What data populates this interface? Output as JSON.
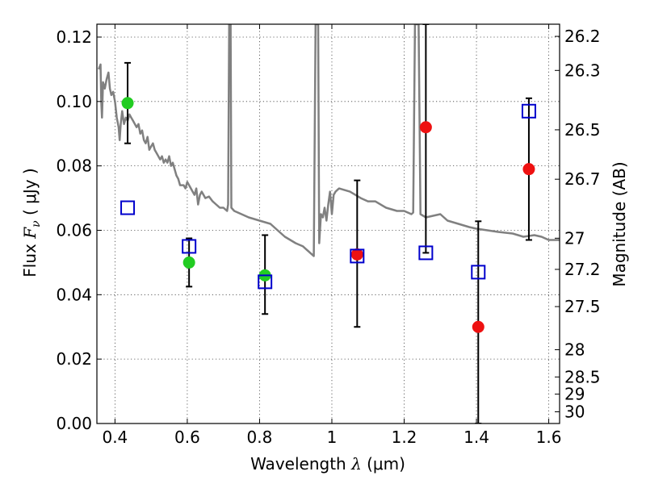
{
  "chart_data": {
    "type": "scatter",
    "xlabel": "Wavelength  λ (μm)",
    "ylabel": "Flux  Fν (  μJy )",
    "ylabel_parts": {
      "prefix": "Flux  ",
      "symbol": "F",
      "subscript": "ν",
      "suffix": " (  μJy )"
    },
    "xlabel_parts": {
      "prefix": "Wavelength  ",
      "symbol": "λ",
      "suffix": " (μm)"
    },
    "y2label": "Magnitude (AB)",
    "xlim": [
      0.35,
      1.63
    ],
    "ylim": [
      0.0,
      0.124
    ],
    "x_ticks": [
      {
        "value": 0.4,
        "label": "0.4"
      },
      {
        "value": 0.6,
        "label": "0.6"
      },
      {
        "value": 0.8,
        "label": "0.8"
      },
      {
        "value": 1.0,
        "label": "1"
      },
      {
        "value": 1.2,
        "label": "1.2"
      },
      {
        "value": 1.4,
        "label": "1.4"
      },
      {
        "value": 1.6,
        "label": "1.6"
      }
    ],
    "y_ticks": [
      {
        "value": 0.0,
        "label": "0.00"
      },
      {
        "value": 0.02,
        "label": "0.02"
      },
      {
        "value": 0.04,
        "label": "0.04"
      },
      {
        "value": 0.06,
        "label": "0.06"
      },
      {
        "value": 0.08,
        "label": "0.08"
      },
      {
        "value": 0.1,
        "label": "0.10"
      },
      {
        "value": 0.12,
        "label": "0.12"
      }
    ],
    "mag_ticks": [
      {
        "value": 26.2,
        "label": "26.2"
      },
      {
        "value": 26.3,
        "label": "26.3"
      },
      {
        "value": 26.5,
        "label": "26.5"
      },
      {
        "value": 26.7,
        "label": "26.7"
      },
      {
        "value": 27.0,
        "label": "27"
      },
      {
        "value": 27.2,
        "label": "27.2"
      },
      {
        "value": 27.5,
        "label": "27.5"
      },
      {
        "value": 28.0,
        "label": "28"
      },
      {
        "value": 28.5,
        "label": "28.5"
      },
      {
        "value": 29.0,
        "label": "29"
      },
      {
        "value": 30.0,
        "label": "30"
      }
    ],
    "grid": true,
    "colors": {
      "sed": "#808080",
      "detection": "#22cc22",
      "nondetection": "#ee1111",
      "model": "#0000cc",
      "errorbar": "#000000"
    },
    "series": [
      {
        "name": "SED template",
        "kind": "line",
        "points": [
          [
            0.355,
            0.11
          ],
          [
            0.36,
            0.1115
          ],
          [
            0.362,
            0.1
          ],
          [
            0.364,
            0.095
          ],
          [
            0.367,
            0.106
          ],
          [
            0.372,
            0.104
          ],
          [
            0.377,
            0.107
          ],
          [
            0.382,
            0.109
          ],
          [
            0.386,
            0.104
          ],
          [
            0.39,
            0.102
          ],
          [
            0.395,
            0.103
          ],
          [
            0.4,
            0.1
          ],
          [
            0.405,
            0.095
          ],
          [
            0.41,
            0.092
          ],
          [
            0.413,
            0.088
          ],
          [
            0.416,
            0.093
          ],
          [
            0.42,
            0.097
          ],
          [
            0.425,
            0.093
          ],
          [
            0.43,
            0.095
          ],
          [
            0.435,
            0.094
          ],
          [
            0.44,
            0.096
          ],
          [
            0.445,
            0.095
          ],
          [
            0.45,
            0.094
          ],
          [
            0.455,
            0.093
          ],
          [
            0.46,
            0.092
          ],
          [
            0.465,
            0.093
          ],
          [
            0.47,
            0.09
          ],
          [
            0.475,
            0.091
          ],
          [
            0.48,
            0.088
          ],
          [
            0.485,
            0.087
          ],
          [
            0.49,
            0.089
          ],
          [
            0.495,
            0.085
          ],
          [
            0.5,
            0.086
          ],
          [
            0.505,
            0.087
          ],
          [
            0.51,
            0.085
          ],
          [
            0.515,
            0.084
          ],
          [
            0.52,
            0.083
          ],
          [
            0.525,
            0.082
          ],
          [
            0.53,
            0.083
          ],
          [
            0.535,
            0.081
          ],
          [
            0.54,
            0.082
          ],
          [
            0.545,
            0.081
          ],
          [
            0.55,
            0.083
          ],
          [
            0.555,
            0.08
          ],
          [
            0.56,
            0.081
          ],
          [
            0.565,
            0.079
          ],
          [
            0.57,
            0.077
          ],
          [
            0.575,
            0.076
          ],
          [
            0.58,
            0.074
          ],
          [
            0.585,
            0.074
          ],
          [
            0.59,
            0.074
          ],
          [
            0.595,
            0.073
          ],
          [
            0.6,
            0.075
          ],
          [
            0.605,
            0.074
          ],
          [
            0.61,
            0.073
          ],
          [
            0.615,
            0.072
          ],
          [
            0.62,
            0.071
          ],
          [
            0.625,
            0.073
          ],
          [
            0.63,
            0.068
          ],
          [
            0.635,
            0.071
          ],
          [
            0.64,
            0.072
          ],
          [
            0.65,
            0.07
          ],
          [
            0.66,
            0.0705
          ],
          [
            0.67,
            0.069
          ],
          [
            0.68,
            0.068
          ],
          [
            0.69,
            0.067
          ],
          [
            0.7,
            0.067
          ],
          [
            0.71,
            0.066
          ],
          [
            0.713,
            0.068
          ],
          [
            0.716,
            0.124
          ],
          [
            0.72,
            0.124
          ],
          [
            0.722,
            0.067
          ],
          [
            0.73,
            0.066
          ],
          [
            0.75,
            0.065
          ],
          [
            0.77,
            0.064
          ],
          [
            0.8,
            0.063
          ],
          [
            0.83,
            0.062
          ],
          [
            0.85,
            0.06
          ],
          [
            0.87,
            0.058
          ],
          [
            0.9,
            0.056
          ],
          [
            0.92,
            0.055
          ],
          [
            0.94,
            0.053
          ],
          [
            0.95,
            0.052
          ],
          [
            0.955,
            0.124
          ],
          [
            0.962,
            0.124
          ],
          [
            0.965,
            0.056
          ],
          [
            0.97,
            0.065
          ],
          [
            0.975,
            0.064
          ],
          [
            0.98,
            0.067
          ],
          [
            0.985,
            0.063
          ],
          [
            0.99,
            0.068
          ],
          [
            0.995,
            0.072
          ],
          [
            1.0,
            0.065
          ],
          [
            1.005,
            0.071
          ],
          [
            1.01,
            0.072
          ],
          [
            1.02,
            0.073
          ],
          [
            1.05,
            0.072
          ],
          [
            1.08,
            0.07
          ],
          [
            1.1,
            0.069
          ],
          [
            1.12,
            0.069
          ],
          [
            1.15,
            0.067
          ],
          [
            1.18,
            0.066
          ],
          [
            1.2,
            0.066
          ],
          [
            1.22,
            0.065
          ],
          [
            1.225,
            0.0655
          ],
          [
            1.23,
            0.124
          ],
          [
            1.24,
            0.124
          ],
          [
            1.245,
            0.065
          ],
          [
            1.26,
            0.064
          ],
          [
            1.28,
            0.0645
          ],
          [
            1.3,
            0.065
          ],
          [
            1.32,
            0.063
          ],
          [
            1.35,
            0.062
          ],
          [
            1.38,
            0.061
          ],
          [
            1.4,
            0.0605
          ],
          [
            1.43,
            0.06
          ],
          [
            1.46,
            0.0595
          ],
          [
            1.5,
            0.059
          ],
          [
            1.53,
            0.058
          ],
          [
            1.56,
            0.0585
          ],
          [
            1.58,
            0.058
          ],
          [
            1.6,
            0.057
          ],
          [
            1.63,
            0.057
          ]
        ]
      },
      {
        "name": "Detections",
        "kind": "scatter-errorbar",
        "marker": "circle",
        "points": [
          {
            "x": 0.435,
            "y": 0.0995,
            "lo": 0.087,
            "hi": 0.112
          },
          {
            "x": 0.605,
            "y": 0.05,
            "lo": 0.0425,
            "hi": 0.0575
          },
          {
            "x": 0.815,
            "y": 0.046,
            "lo": 0.034,
            "hi": 0.0585
          }
        ]
      },
      {
        "name": "Non-detections",
        "kind": "scatter-errorbar",
        "marker": "circle",
        "points": [
          {
            "x": 1.07,
            "y": 0.0525,
            "lo": 0.03,
            "hi": 0.0755
          },
          {
            "x": 1.26,
            "y": 0.092,
            "lo": 0.053,
            "hi": 0.124
          },
          {
            "x": 1.405,
            "y": 0.03,
            "lo": 0.0,
            "hi": 0.0628
          },
          {
            "x": 1.545,
            "y": 0.079,
            "lo": 0.057,
            "hi": 0.101
          }
        ]
      },
      {
        "name": "Model fluxes",
        "kind": "scatter",
        "marker": "open-square",
        "points": [
          {
            "x": 0.435,
            "y": 0.067
          },
          {
            "x": 0.605,
            "y": 0.055
          },
          {
            "x": 0.815,
            "y": 0.044
          },
          {
            "x": 1.07,
            "y": 0.052
          },
          {
            "x": 1.26,
            "y": 0.053
          },
          {
            "x": 1.405,
            "y": 0.047
          },
          {
            "x": 1.545,
            "y": 0.097
          }
        ]
      }
    ]
  }
}
